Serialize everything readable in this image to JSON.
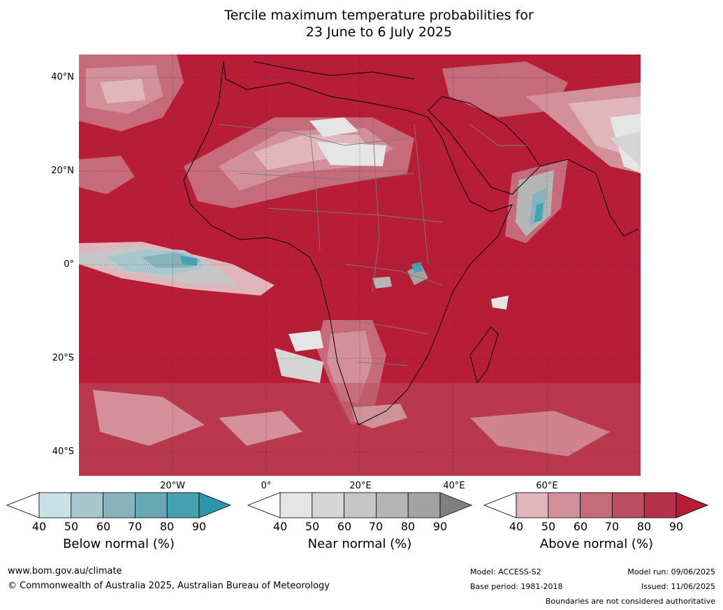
{
  "title": {
    "line1": "Tercile maximum temperature probabilities for",
    "line2": "23 June to 6 July 2025"
  },
  "map": {
    "lat_labels": [
      "40°N",
      "20°N",
      "0°",
      "20°S",
      "40°S"
    ],
    "lon_labels": [
      "20°W",
      "0°",
      "20°E",
      "40°E",
      "60°E"
    ],
    "colors": {
      "above": [
        "#e0b5bc",
        "#d2909b",
        "#c66b79",
        "#bc4f5f",
        "#b23348",
        "#b81d38"
      ],
      "near": [
        "#e5e5e5",
        "#d6d6d6",
        "#c6c6c6",
        "#b5b5b5",
        "#a2a2a2",
        "#808080"
      ],
      "below": [
        "#c9e0e6",
        "#a7c6cd",
        "#87b3bd",
        "#68a8b4",
        "#45a0b1",
        "#2e96ab"
      ]
    }
  },
  "colorbars": [
    {
      "name": "below",
      "title": "Below normal (%)",
      "ticks": [
        "40",
        "50",
        "60",
        "70",
        "80",
        "90"
      ],
      "colors": [
        "#c9e0e6",
        "#a7c6cd",
        "#87b3bd",
        "#68a8b4",
        "#45a0b1"
      ],
      "end_color": "#2e96ab"
    },
    {
      "name": "near",
      "title": "Near normal (%)",
      "ticks": [
        "40",
        "50",
        "60",
        "70",
        "80",
        "90"
      ],
      "colors": [
        "#e5e5e5",
        "#d6d6d6",
        "#c6c6c6",
        "#b5b5b5",
        "#a2a2a2"
      ],
      "end_color": "#808080"
    },
    {
      "name": "above",
      "title": "Above normal (%)",
      "ticks": [
        "40",
        "50",
        "60",
        "70",
        "80",
        "90"
      ],
      "colors": [
        "#e0b5bc",
        "#d2909b",
        "#c66b79",
        "#bc4f5f",
        "#b23348"
      ],
      "end_color": "#b81d38"
    }
  ],
  "footer": {
    "url": "www.bom.gov.au/climate",
    "copyright": "© Commonwealth of Australia 2025, Australian Bureau of Meteorology",
    "model": "Model: ACCESS-S2",
    "base_period": "Base period: 1981-2018",
    "model_run": "Model run: 09/06/2025",
    "issued": "Issued: 11/06/2025",
    "disclaimer": "Boundaries are not considered authoritative"
  }
}
